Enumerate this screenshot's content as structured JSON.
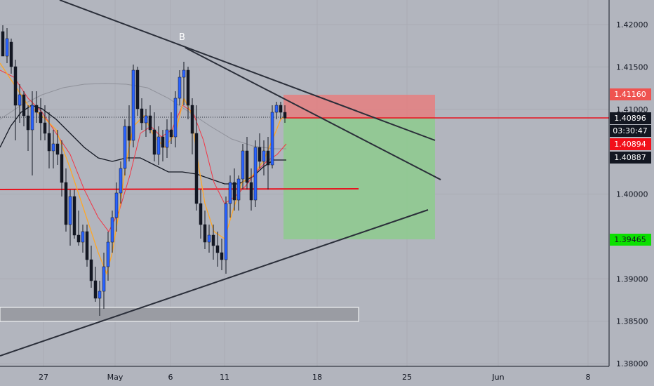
{
  "chart_data": {
    "type": "candlestick",
    "pair_context": "price chart with trendlines, moving averages and short position tool",
    "y_axis": {
      "ticks": [
        "1.42000",
        "1.41500",
        "1.41000",
        "1.40000",
        "1.39000",
        "1.38500",
        "1.38000"
      ],
      "range": [
        1.38,
        1.422
      ]
    },
    "x_axis": {
      "ticks": [
        "27",
        "May",
        "6",
        "11",
        "18",
        "25",
        "Jun",
        "8"
      ]
    },
    "annotation_label": "B",
    "price_tags": [
      {
        "id": "target-top",
        "value": "1.41160",
        "bg": "#ef5350",
        "fg": "#ffffff"
      },
      {
        "id": "last-price",
        "value": "1.40896",
        "bg": "#131722",
        "fg": "#ffffff"
      },
      {
        "id": "countdown",
        "value": "03:30:47",
        "bg": "#131722",
        "fg": "#ffffff"
      },
      {
        "id": "ma-red",
        "value": "1.40894",
        "bg": "#f2101a",
        "fg": "#ffffff"
      },
      {
        "id": "ma-black",
        "value": "1.40887",
        "bg": "#131722",
        "fg": "#ffffff"
      },
      {
        "id": "target-bottom",
        "value": "1.39465",
        "bg": "#0be000",
        "fg": "#131722"
      }
    ],
    "position": {
      "side": "short",
      "stop": 1.4116,
      "entry": 1.40896,
      "target": 1.39465
    },
    "levels": {
      "support_red": 1.4006,
      "resistance_red": 1.40896
    },
    "colors": {
      "background": "#b2b5be",
      "candle": "#131722",
      "ma_fast": "#ffa726",
      "ma_mid": "#f23645",
      "ma_slow": "#131722",
      "ma_long": "#8f919a",
      "trendline": "#2a2e39",
      "stop_zone": "#e57373",
      "target_zone": "#81c784"
    }
  }
}
